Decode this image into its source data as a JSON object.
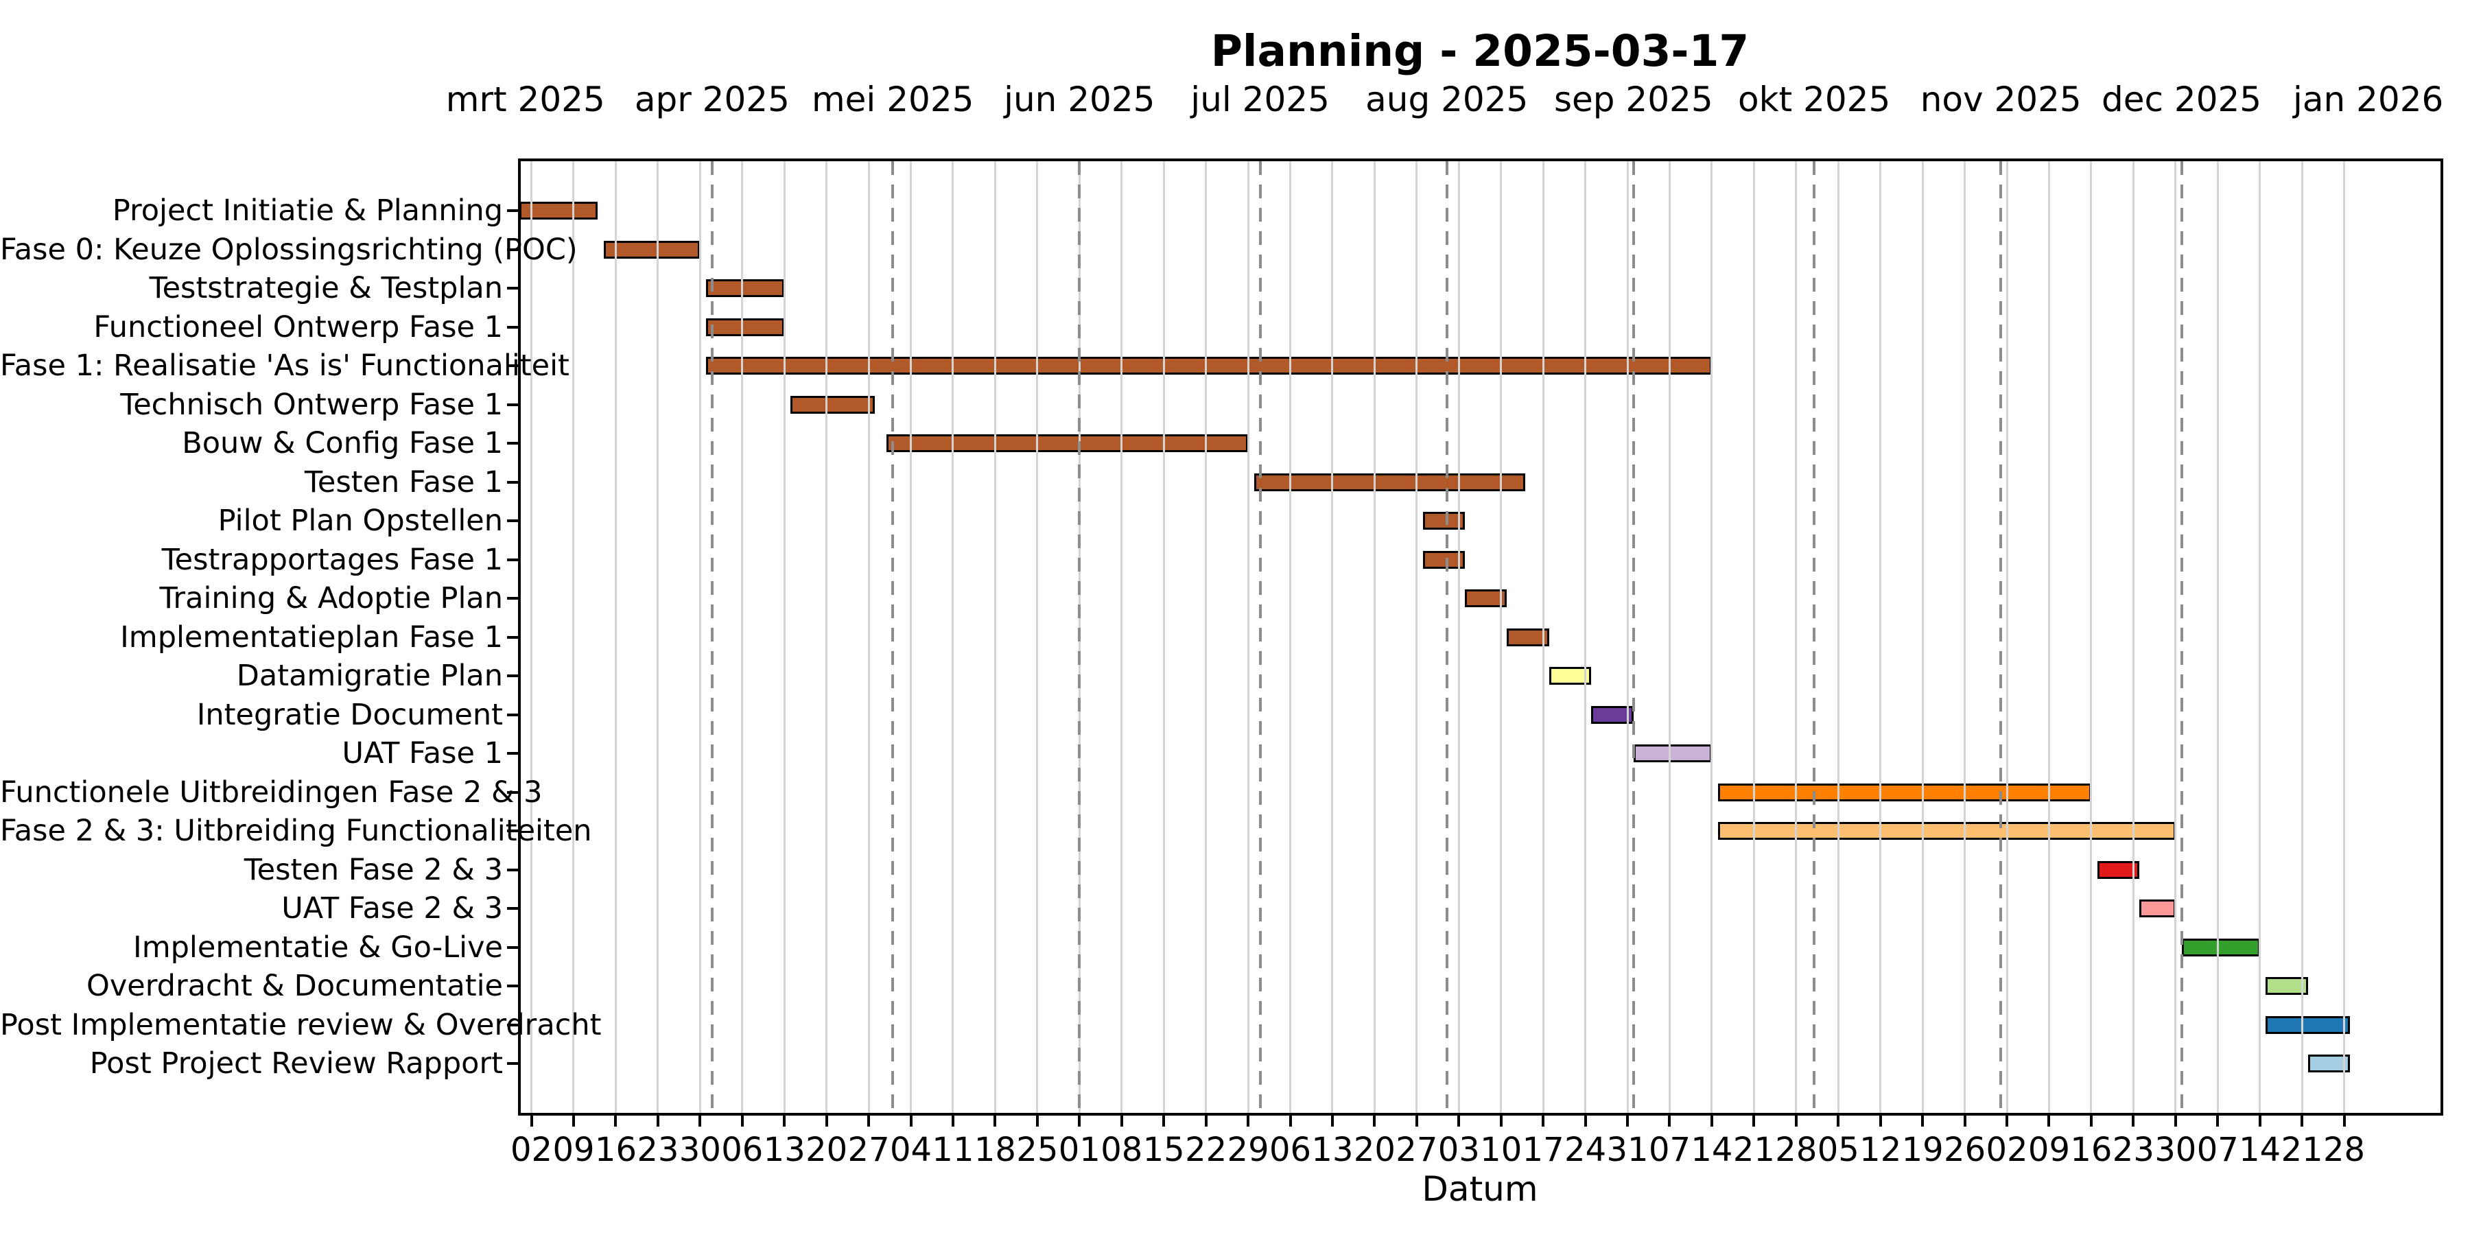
{
  "chart_data": {
    "type": "gantt",
    "title": "Planning - 2025-03-17",
    "xlabel": "Datum",
    "axis": {
      "start": "2025-02-28",
      "end": "2026-01-13",
      "grid": "weekly light solid + monthly gray dashed",
      "legend": "none"
    },
    "month_labels": [
      {
        "label": "mrt 2025",
        "date": "2025-03-01"
      },
      {
        "label": "apr 2025",
        "date": "2025-04-01"
      },
      {
        "label": "mei 2025",
        "date": "2025-05-01"
      },
      {
        "label": "jun 2025",
        "date": "2025-06-01"
      },
      {
        "label": "jul 2025",
        "date": "2025-07-01"
      },
      {
        "label": "aug 2025",
        "date": "2025-08-01"
      },
      {
        "label": "sep 2025",
        "date": "2025-09-01"
      },
      {
        "label": "okt 2025",
        "date": "2025-10-01"
      },
      {
        "label": "nov 2025",
        "date": "2025-11-01"
      },
      {
        "label": "dec 2025",
        "date": "2025-12-01"
      },
      {
        "label": "jan 2026",
        "date": "2026-01-01"
      }
    ],
    "month_gridlines": [
      "2025-04-01",
      "2025-05-01",
      "2025-06-01",
      "2025-07-01",
      "2025-08-01",
      "2025-09-01",
      "2025-10-01",
      "2025-11-01",
      "2025-12-01"
    ],
    "week_ticks": [
      {
        "label": "02",
        "date": "2025-03-02"
      },
      {
        "label": "09",
        "date": "2025-03-09"
      },
      {
        "label": "16",
        "date": "2025-03-16"
      },
      {
        "label": "23",
        "date": "2025-03-23"
      },
      {
        "label": "30",
        "date": "2025-03-30"
      },
      {
        "label": "06",
        "date": "2025-04-06"
      },
      {
        "label": "13",
        "date": "2025-04-13"
      },
      {
        "label": "20",
        "date": "2025-04-20"
      },
      {
        "label": "27",
        "date": "2025-04-27"
      },
      {
        "label": "04",
        "date": "2025-05-04"
      },
      {
        "label": "11",
        "date": "2025-05-11"
      },
      {
        "label": "18",
        "date": "2025-05-18"
      },
      {
        "label": "25",
        "date": "2025-05-25"
      },
      {
        "label": "01",
        "date": "2025-06-01"
      },
      {
        "label": "08",
        "date": "2025-06-08"
      },
      {
        "label": "15",
        "date": "2025-06-15"
      },
      {
        "label": "22",
        "date": "2025-06-22"
      },
      {
        "label": "29",
        "date": "2025-06-29"
      },
      {
        "label": "06",
        "date": "2025-07-06"
      },
      {
        "label": "13",
        "date": "2025-07-13"
      },
      {
        "label": "20",
        "date": "2025-07-20"
      },
      {
        "label": "27",
        "date": "2025-07-27"
      },
      {
        "label": "03",
        "date": "2025-08-03"
      },
      {
        "label": "10",
        "date": "2025-08-10"
      },
      {
        "label": "17",
        "date": "2025-08-17"
      },
      {
        "label": "24",
        "date": "2025-08-24"
      },
      {
        "label": "31",
        "date": "2025-08-31"
      },
      {
        "label": "07",
        "date": "2025-09-07"
      },
      {
        "label": "14",
        "date": "2025-09-14"
      },
      {
        "label": "21",
        "date": "2025-09-21"
      },
      {
        "label": "28",
        "date": "2025-09-28"
      },
      {
        "label": "05",
        "date": "2025-10-05"
      },
      {
        "label": "12",
        "date": "2025-10-12"
      },
      {
        "label": "19",
        "date": "2025-10-19"
      },
      {
        "label": "26",
        "date": "2025-10-26"
      },
      {
        "label": "02",
        "date": "2025-11-02"
      },
      {
        "label": "09",
        "date": "2025-11-09"
      },
      {
        "label": "16",
        "date": "2025-11-16"
      },
      {
        "label": "23",
        "date": "2025-11-23"
      },
      {
        "label": "30",
        "date": "2025-11-30"
      },
      {
        "label": "07",
        "date": "2025-12-07"
      },
      {
        "label": "14",
        "date": "2025-12-14"
      },
      {
        "label": "21",
        "date": "2025-12-21"
      },
      {
        "label": "28",
        "date": "2025-12-28"
      }
    ],
    "tasks": [
      {
        "label": "Project Initiatie & Planning",
        "start": "2025-02-28",
        "end": "2025-03-13",
        "color": "#B15928"
      },
      {
        "label": "Fase 0: Keuze Oplossingsrichting (POC)",
        "start": "2025-03-14",
        "end": "2025-03-30",
        "color": "#B15928"
      },
      {
        "label": "Teststrategie & Testplan",
        "start": "2025-03-31",
        "end": "2025-04-13",
        "color": "#B15928"
      },
      {
        "label": "Functioneel Ontwerp Fase 1",
        "start": "2025-03-31",
        "end": "2025-04-13",
        "color": "#B15928"
      },
      {
        "label": "Fase 1: Realisatie 'As is' Functionaliteit",
        "start": "2025-03-31",
        "end": "2025-09-14",
        "color": "#B15928"
      },
      {
        "label": "Technisch Ontwerp Fase 1",
        "start": "2025-04-14",
        "end": "2025-04-28",
        "color": "#B15928"
      },
      {
        "label": "Bouw & Config Fase 1",
        "start": "2025-04-30",
        "end": "2025-06-29",
        "color": "#B15928"
      },
      {
        "label": "Testen Fase 1",
        "start": "2025-06-30",
        "end": "2025-08-14",
        "color": "#B15928"
      },
      {
        "label": "Pilot Plan Opstellen",
        "start": "2025-07-28",
        "end": "2025-08-04",
        "color": "#B15928"
      },
      {
        "label": "Testrapportages Fase 1",
        "start": "2025-07-28",
        "end": "2025-08-04",
        "color": "#B15928"
      },
      {
        "label": "Training & Adoptie Plan",
        "start": "2025-08-04",
        "end": "2025-08-11",
        "color": "#B15928"
      },
      {
        "label": "Implementatieplan Fase 1",
        "start": "2025-08-11",
        "end": "2025-08-18",
        "color": "#B15928"
      },
      {
        "label": "Datamigratie Plan",
        "start": "2025-08-18",
        "end": "2025-08-25",
        "color": "#FFFF99"
      },
      {
        "label": "Integratie Document",
        "start": "2025-08-25",
        "end": "2025-09-01",
        "color": "#6A3D9A"
      },
      {
        "label": "UAT Fase 1",
        "start": "2025-09-01",
        "end": "2025-09-14",
        "color": "#CAB2D6"
      },
      {
        "label": "Functionele Uitbreidingen Fase 2 & 3",
        "start": "2025-09-15",
        "end": "2025-11-16",
        "color": "#FF7F00"
      },
      {
        "label": "Fase 2 & 3: Uitbreiding Functionaliteiten",
        "start": "2025-09-15",
        "end": "2025-11-30",
        "color": "#FDBF6F"
      },
      {
        "label": "Testen Fase 2 & 3",
        "start": "2025-11-17",
        "end": "2025-11-24",
        "color": "#E31A1C"
      },
      {
        "label": "UAT Fase 2 & 3",
        "start": "2025-11-24",
        "end": "2025-11-30",
        "color": "#FB9A99"
      },
      {
        "label": "Implementatie & Go-Live",
        "start": "2025-12-01",
        "end": "2025-12-14",
        "color": "#33A02C"
      },
      {
        "label": "Overdracht & Documentatie",
        "start": "2025-12-15",
        "end": "2025-12-22",
        "color": "#B2DF8A"
      },
      {
        "label": "Post Implementatie review & Overdracht",
        "start": "2025-12-15",
        "end": "2025-12-29",
        "color": "#1F78B4"
      },
      {
        "label": "Post Project Review Rapport",
        "start": "2025-12-22",
        "end": "2025-12-29",
        "color": "#A6CEE3"
      }
    ],
    "style": {
      "bar_fill_default": "#B15928",
      "bar_edge": "#000000",
      "week_grid_color": "#d4d4d4",
      "month_grid_color": "#8c8c8c",
      "spine_color": "#000000",
      "background": "#ffffff"
    }
  }
}
